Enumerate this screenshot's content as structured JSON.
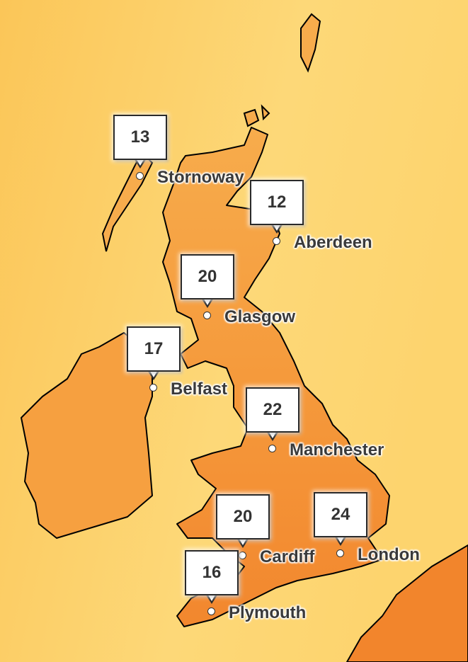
{
  "map": {
    "type": "weather temperature map",
    "colors": {
      "sea": "#fcd26a",
      "land_north": "#f6a544",
      "land_south": "#f28a30",
      "coastline": "#000000"
    },
    "cities": [
      {
        "name": "Stornoway",
        "temperature": "13"
      },
      {
        "name": "Aberdeen",
        "temperature": "12"
      },
      {
        "name": "Glasgow",
        "temperature": "20"
      },
      {
        "name": "Belfast",
        "temperature": "17"
      },
      {
        "name": "Manchester",
        "temperature": "22"
      },
      {
        "name": "Cardiff",
        "temperature": "20"
      },
      {
        "name": "London",
        "temperature": "24"
      },
      {
        "name": "Plymouth",
        "temperature": "16"
      }
    ]
  }
}
